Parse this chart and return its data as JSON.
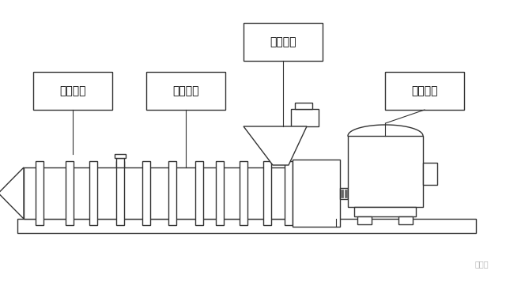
{
  "bg_color": "#ffffff",
  "lc": "#333333",
  "lw": 1.0,
  "labels": {
    "vacuum": "真空系统",
    "temp": "温控系统",
    "feed": "喂料系统",
    "drive": "驱动系统"
  },
  "fs": 10,
  "watermark": "链塑网"
}
